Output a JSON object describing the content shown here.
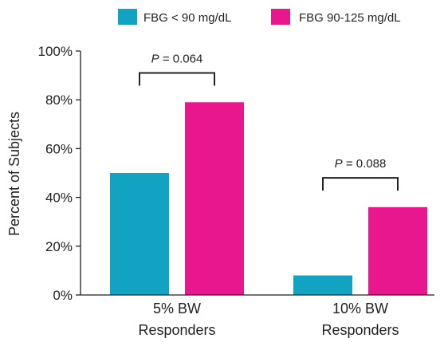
{
  "chart_data": {
    "type": "bar",
    "categories": [
      "5% BW Responders",
      "10% BW Responders"
    ],
    "category_lines": [
      [
        "5% BW",
        "Responders"
      ],
      [
        "10% BW",
        "Responders"
      ]
    ],
    "series": [
      {
        "name": "FBG < 90 mg/dL",
        "color": "#13a3c2",
        "values": [
          50,
          8
        ]
      },
      {
        "name": "FBG 90-125 mg/dL",
        "color": "#e8178e",
        "values": [
          79,
          36
        ]
      }
    ],
    "ylabel": "Percent of Subjects",
    "ylim": [
      0,
      100
    ],
    "yticks": [
      0,
      20,
      40,
      60,
      80,
      100
    ],
    "ytick_labels": [
      "0%",
      "20%",
      "40%",
      "60%",
      "80%",
      "100%"
    ],
    "legend_position": "top",
    "annotations": [
      {
        "category": 0,
        "p_symbol": "P",
        "p_text": " = 0.064",
        "bracket_at": 91
      },
      {
        "category": 1,
        "p_symbol": "P",
        "p_text": " = 0.088",
        "bracket_at": 48
      }
    ]
  }
}
